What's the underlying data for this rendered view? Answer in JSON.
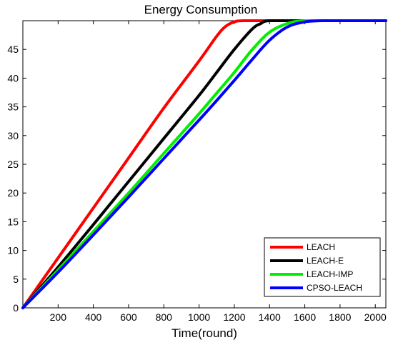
{
  "chart_data": {
    "type": "line",
    "title": "Energy Consumption",
    "xlabel": "Time(round)",
    "ylabel": "",
    "xlim": [
      0,
      2060
    ],
    "ylim": [
      0,
      50
    ],
    "xticks": [
      200,
      400,
      600,
      800,
      1000,
      1200,
      1400,
      1600,
      1800,
      2000
    ],
    "yticks": [
      0,
      5,
      10,
      15,
      20,
      25,
      30,
      35,
      40,
      45
    ],
    "grid": false,
    "legend_position": "bottom-right",
    "series": [
      {
        "name": "LEACH",
        "color": "#ff0000",
        "points": [
          [
            0,
            0
          ],
          [
            200,
            8.7
          ],
          [
            400,
            17.4
          ],
          [
            600,
            26.1
          ],
          [
            800,
            34.8
          ],
          [
            1000,
            43.0
          ],
          [
            1100,
            47.3
          ],
          [
            1150,
            49.0
          ],
          [
            1200,
            49.8
          ],
          [
            1250,
            50
          ],
          [
            1400,
            50
          ],
          [
            1600,
            50
          ],
          [
            1800,
            50
          ],
          [
            2060,
            50
          ]
        ]
      },
      {
        "name": "LEACH-E",
        "color": "#000000",
        "points": [
          [
            0,
            0
          ],
          [
            200,
            7.1
          ],
          [
            400,
            14.5
          ],
          [
            600,
            22.0
          ],
          [
            800,
            29.5
          ],
          [
            1000,
            37.0
          ],
          [
            1100,
            41.0
          ],
          [
            1200,
            45.0
          ],
          [
            1300,
            48.5
          ],
          [
            1350,
            49.5
          ],
          [
            1400,
            50
          ],
          [
            1600,
            50
          ],
          [
            1800,
            50
          ],
          [
            2060,
            50
          ]
        ]
      },
      {
        "name": "LEACH-IMP",
        "color": "#00ee00",
        "points": [
          [
            0,
            0
          ],
          [
            200,
            6.6
          ],
          [
            400,
            13.3
          ],
          [
            600,
            20.0
          ],
          [
            800,
            26.9
          ],
          [
            1000,
            33.8
          ],
          [
            1100,
            37.4
          ],
          [
            1200,
            41.0
          ],
          [
            1300,
            44.9
          ],
          [
            1400,
            48.0
          ],
          [
            1500,
            49.5
          ],
          [
            1600,
            50
          ],
          [
            1800,
            50
          ],
          [
            2060,
            50
          ]
        ]
      },
      {
        "name": "CPSO-LEACH",
        "color": "#0000ff",
        "points": [
          [
            0,
            0
          ],
          [
            200,
            6.2
          ],
          [
            400,
            12.7
          ],
          [
            600,
            19.3
          ],
          [
            800,
            26.0
          ],
          [
            1000,
            32.7
          ],
          [
            1100,
            36.1
          ],
          [
            1200,
            39.6
          ],
          [
            1300,
            43.2
          ],
          [
            1400,
            46.6
          ],
          [
            1500,
            48.9
          ],
          [
            1600,
            49.8
          ],
          [
            1700,
            50
          ],
          [
            1800,
            50
          ],
          [
            2060,
            50
          ]
        ]
      }
    ]
  }
}
